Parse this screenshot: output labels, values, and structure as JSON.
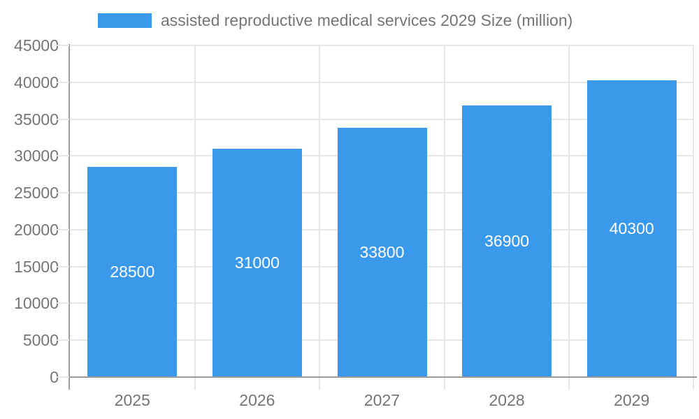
{
  "chart_data": {
    "type": "bar",
    "title": "",
    "legend": "assisted reproductive medical services 2029 Size (million)",
    "legend_position": "top",
    "categories": [
      "2025",
      "2026",
      "2027",
      "2028",
      "2029"
    ],
    "series": [
      {
        "name": "assisted reproductive medical services 2029 Size (million)",
        "values": [
          28500,
          31000,
          33800,
          36900,
          40300
        ]
      }
    ],
    "value_labels": [
      "28500",
      "31000",
      "33800",
      "36900",
      "40300"
    ],
    "xlabel": "",
    "ylabel": "",
    "ylim": [
      0,
      45000
    ],
    "ytick_step": 5000,
    "yticks": [
      "0",
      "5000",
      "10000",
      "15000",
      "20000",
      "25000",
      "30000",
      "35000",
      "40000",
      "45000"
    ],
    "grid": true,
    "colors": {
      "bar": "#3B99EC",
      "axis_text": "#757575",
      "gridline": "#e6e6e6",
      "axis_line": "#9a9a9a",
      "bar_label": "#ffffff",
      "background": "#ffffff"
    }
  }
}
